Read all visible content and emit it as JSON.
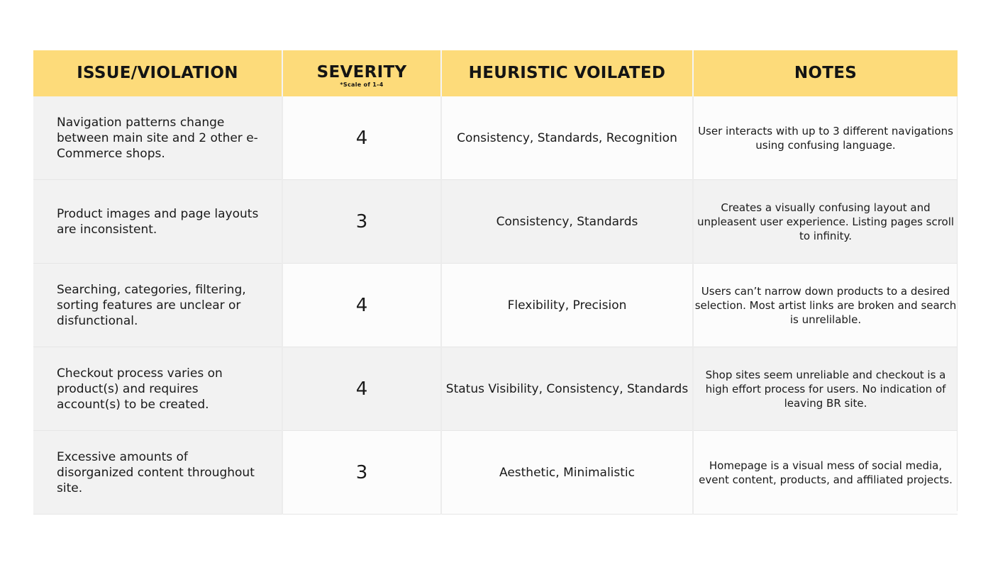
{
  "headers": {
    "issue": "ISSUE/VIOLATION",
    "severity": "SEVERITY",
    "severity_note": "*Scale of 1-4",
    "heuristic": "HEURISTIC VOILATED",
    "notes": "NOTES"
  },
  "rows": [
    {
      "issue": "Navigation patterns change between main site and 2 other e-Commerce shops.",
      "severity": "4",
      "heuristic": "Consistency, Standards, Recognition",
      "notes": "User interacts with up to 3 different navigations using confusing language."
    },
    {
      "issue": "Product images and page layouts are inconsistent.",
      "severity": "3",
      "heuristic": "Consistency, Standards",
      "notes": "Creates a visually confusing layout and unpleasent user experience. Listing pages scroll to infinity."
    },
    {
      "issue": "Searching, categories, filtering, sorting features are unclear or disfunctional.",
      "severity": "4",
      "heuristic": "Flexibility, Precision",
      "notes": "Users can’t narrow down products to a desired selection. Most artist links are broken and search is unrelilable."
    },
    {
      "issue": "Checkout process varies on product(s) and requires account(s) to be created.",
      "severity": "4",
      "heuristic": "Status Visibility, Consistency, Standards",
      "notes": "Shop sites seem unreliable and checkout is a high effort process for users. No indication of leaving BR site."
    },
    {
      "issue": "Excessive amounts of disorganized content throughout site.",
      "severity": "3",
      "heuristic": "Aesthetic, Minimalistic",
      "notes": "Homepage is a visual mess of social media, event content, products, and affiliated projects."
    }
  ],
  "colors": {
    "header_bg": "#fddb7a",
    "row_light": "#fcfcfc",
    "row_dark": "#f2f2f2"
  }
}
